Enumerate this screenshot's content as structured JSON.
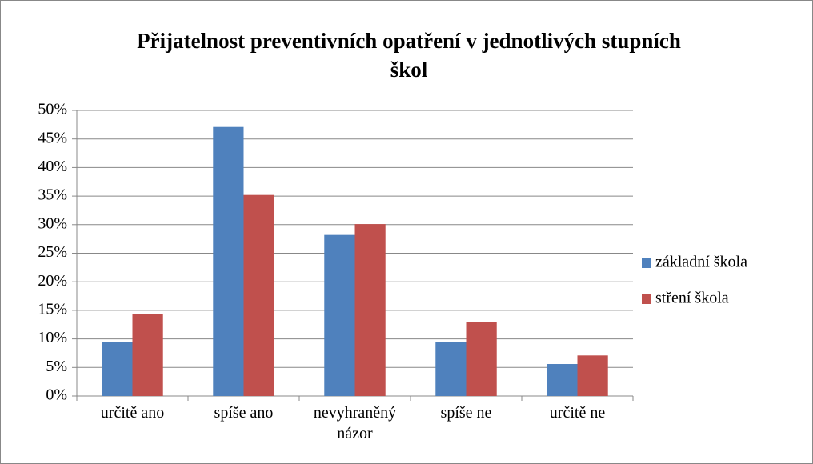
{
  "chart_data": {
    "type": "bar",
    "title": "Přijatelnost preventivních opatření v jednotlivých stupních škol",
    "categories": [
      "určitě ano",
      "spíše ano",
      "nevyhraněný názor",
      "spíše ne",
      "určitě ne"
    ],
    "series": [
      {
        "name": "základní škola",
        "color": "#4f81bd",
        "values": [
          9.4,
          47.1,
          28.2,
          9.4,
          5.6
        ]
      },
      {
        "name": "stření škola",
        "color": "#c0504d",
        "values": [
          14.3,
          35.2,
          30.1,
          12.9,
          7.1
        ]
      }
    ],
    "ylim": [
      0,
      50
    ],
    "yticks": [
      {
        "value": 0,
        "label": "0%"
      },
      {
        "value": 5,
        "label": "5%"
      },
      {
        "value": 10,
        "label": "10%"
      },
      {
        "value": 15,
        "label": "15%"
      },
      {
        "value": 20,
        "label": "20%"
      },
      {
        "value": 25,
        "label": "25%"
      },
      {
        "value": 30,
        "label": "30%"
      },
      {
        "value": 35,
        "label": "35%"
      },
      {
        "value": 40,
        "label": "40%"
      },
      {
        "value": 45,
        "label": "45%"
      },
      {
        "value": 50,
        "label": "50%"
      }
    ],
    "grid": true,
    "legend": "right"
  }
}
